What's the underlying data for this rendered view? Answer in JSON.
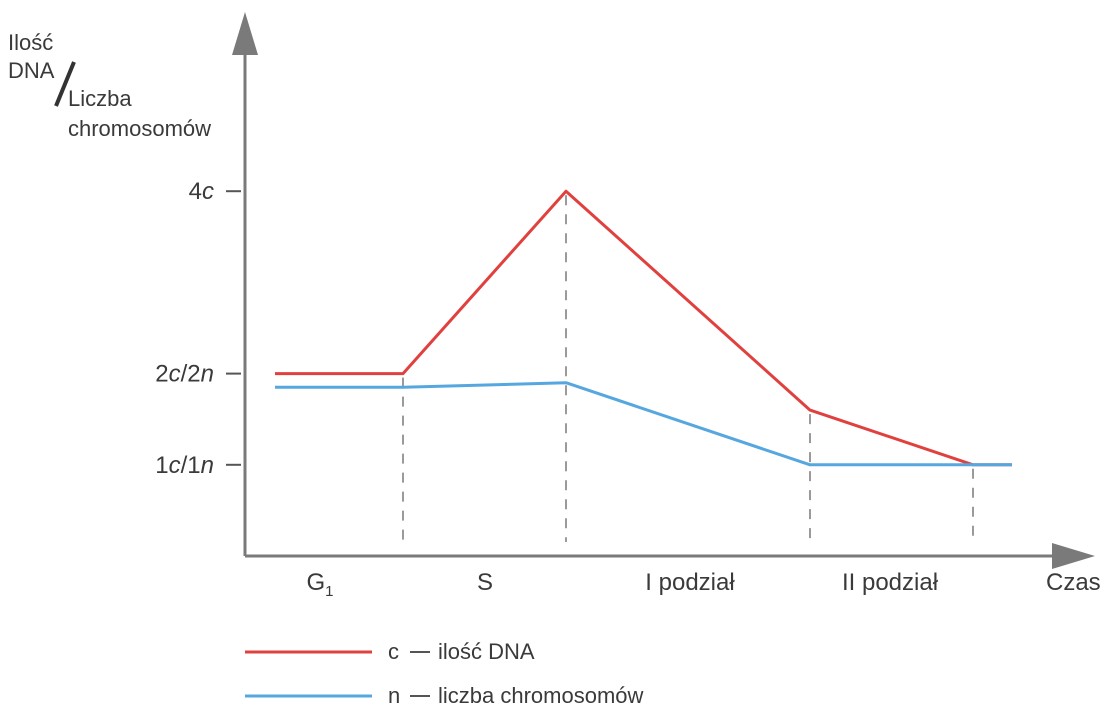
{
  "chart_data": {
    "type": "line",
    "ylabel_dna": "Ilość DNA",
    "ylabel_chromosomes": "Liczba chromosomów",
    "xlabel": "Czas",
    "yticks": [
      "4c",
      "2c/2n",
      "1c/1n"
    ],
    "phases": [
      "G1",
      "S",
      "I podział",
      "II podział"
    ],
    "x": [
      0,
      1,
      2,
      3,
      4
    ],
    "ylim": [
      0,
      5
    ],
    "series": [
      {
        "name": "c – ilość DNA",
        "color": "#e0413f",
        "values": [
          2,
          2,
          4,
          1.6,
          1
        ]
      },
      {
        "name": "n – liczba chromosomów",
        "color": "#56a7df",
        "values": [
          1.85,
          1.85,
          1.9,
          1,
          1
        ]
      }
    ],
    "legend": [
      {
        "letter": "c",
        "text": "ilość DNA"
      },
      {
        "letter": "n",
        "text": "liczba chromosomów"
      }
    ],
    "legend_placement": "bottom-left"
  }
}
